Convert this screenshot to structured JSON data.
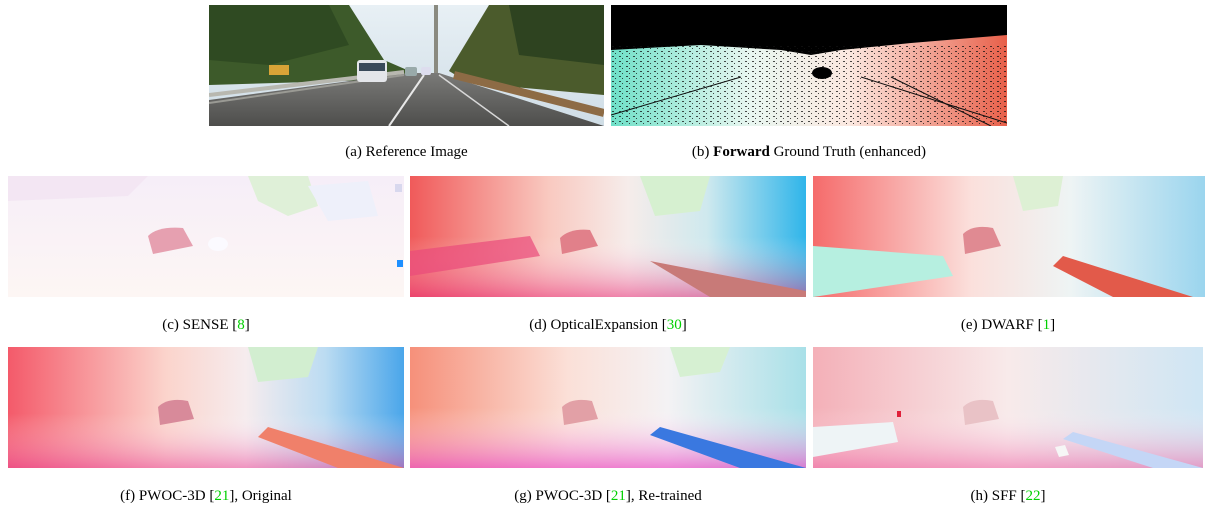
{
  "figure": {
    "panels": [
      {
        "id": "a",
        "caption_pre": "(a) Reference Image",
        "caption_bold": "",
        "caption_mid": "",
        "ref": "",
        "caption_post": ""
      },
      {
        "id": "b",
        "caption_pre": "(b) ",
        "caption_bold": "Forward",
        "caption_mid": " Ground Truth (enhanced)",
        "ref": "",
        "caption_post": ""
      },
      {
        "id": "c",
        "caption_pre": "(c) SENSE [",
        "caption_bold": "",
        "caption_mid": "",
        "ref": "8",
        "caption_post": "]"
      },
      {
        "id": "d",
        "caption_pre": "(d) OpticalExpansion [",
        "caption_bold": "",
        "caption_mid": "",
        "ref": "30",
        "caption_post": "]"
      },
      {
        "id": "e",
        "caption_pre": "(e) DWARF [",
        "caption_bold": "",
        "caption_mid": "",
        "ref": "1",
        "caption_post": "]"
      },
      {
        "id": "f",
        "caption_pre": "(f) PWOC-3D [",
        "caption_bold": "",
        "caption_mid": "",
        "ref": "21",
        "caption_post": "], Original"
      },
      {
        "id": "g",
        "caption_pre": "(g) PWOC-3D [",
        "caption_bold": "",
        "caption_mid": "",
        "ref": "21",
        "caption_post": "], Re-trained"
      },
      {
        "id": "h",
        "caption_pre": "(h) SFF [",
        "caption_bold": "",
        "caption_mid": "",
        "ref": "22",
        "caption_post": "]"
      }
    ]
  },
  "colors": {
    "citation": "#00d000"
  }
}
